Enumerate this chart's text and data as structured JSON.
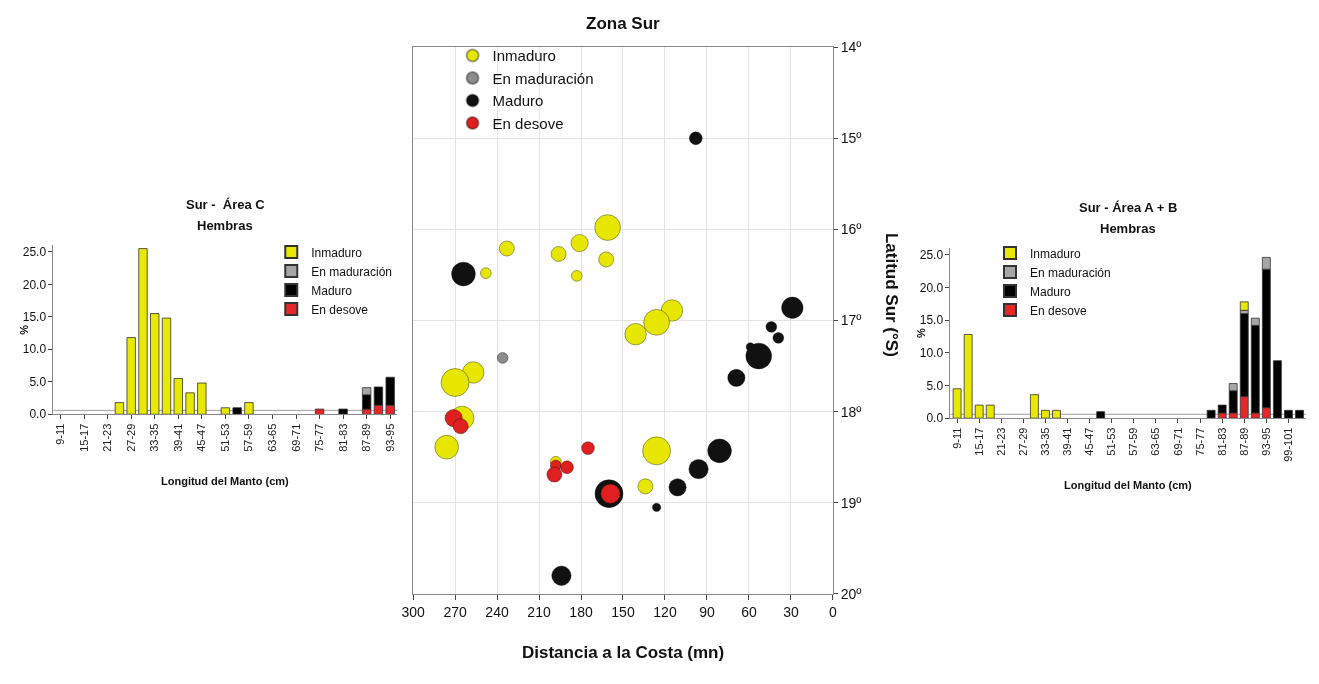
{
  "chart_data": [
    {
      "type": "bar",
      "stacked": true,
      "title": "Sur -  Área C",
      "subtitle": "Hembras",
      "xlabel": "Longitud del Manto (cm)",
      "ylabel": "%",
      "legend": "top right",
      "categories": [
        "9-11",
        null,
        "15-17",
        null,
        "21-23",
        null,
        "27-29",
        null,
        "33-35",
        null,
        "39-41",
        null,
        "45-47",
        null,
        "51-53",
        null,
        "57-59",
        null,
        "63-65",
        null,
        "69-71",
        null,
        "75-77",
        null,
        "81-83",
        null,
        "87-89",
        null,
        "93-95"
      ],
      "ylim": [
        0,
        26
      ],
      "yticks": [
        {
          "value": 0,
          "label": "0.0"
        },
        {
          "value": 5,
          "label": "5.0"
        },
        {
          "value": 10,
          "label": "10.0"
        },
        {
          "value": 15,
          "label": "15.0"
        },
        {
          "value": 20,
          "label": "20.0"
        },
        {
          "value": 25,
          "label": "25.0"
        }
      ],
      "ref_lines": [
        {
          "axis": "y",
          "value": 0.6,
          "color": "#a0a0a0"
        }
      ],
      "series": [
        {
          "name": "En desove",
          "color": "#e8262a",
          "values": [
            null,
            null,
            null,
            null,
            null,
            null,
            null,
            null,
            null,
            null,
            null,
            null,
            null,
            null,
            null,
            null,
            null,
            null,
            null,
            null,
            null,
            null,
            0.8,
            null,
            null,
            null,
            0.8,
            1.4,
            1.4
          ]
        },
        {
          "name": "Maduro",
          "color": "#000000",
          "values": [
            null,
            null,
            null,
            null,
            null,
            null,
            null,
            null,
            null,
            null,
            null,
            null,
            null,
            null,
            null,
            1.0,
            null,
            null,
            null,
            null,
            null,
            null,
            null,
            null,
            0.8,
            null,
            2.2,
            2.8,
            4.3
          ]
        },
        {
          "name": "En maduración",
          "color": "#a6a6a6",
          "values": [
            null,
            null,
            null,
            null,
            null,
            null,
            null,
            null,
            null,
            null,
            null,
            null,
            null,
            null,
            null,
            null,
            null,
            null,
            null,
            null,
            null,
            null,
            null,
            null,
            null,
            null,
            1.1,
            null,
            null
          ]
        },
        {
          "name": "Inmaduro",
          "color": "#e8e800",
          "values": [
            null,
            null,
            null,
            null,
            null,
            1.8,
            11.8,
            25.5,
            15.5,
            14.8,
            5.5,
            3.3,
            4.8,
            null,
            1.0,
            null,
            1.8,
            null,
            null,
            null,
            null,
            null,
            null,
            null,
            null,
            null,
            null,
            null,
            null
          ]
        }
      ]
    },
    {
      "type": "bubble",
      "title": "Zona Sur",
      "xlabel": "Distancia a la Costa (mn)",
      "ylabel": "Latitud Sur (°S)",
      "legend": "top left",
      "grid": true,
      "xlim": [
        300,
        0
      ],
      "xticks": [
        300,
        270,
        240,
        210,
        180,
        150,
        120,
        90,
        60,
        30,
        0
      ],
      "ylim": [
        20,
        14
      ],
      "yticks": [
        {
          "value": 14,
          "label": "14º"
        },
        {
          "value": 15,
          "label": "15º"
        },
        {
          "value": 16,
          "label": "16º"
        },
        {
          "value": 17,
          "label": "17º"
        },
        {
          "value": 18,
          "label": "18º"
        },
        {
          "value": 19,
          "label": "19º"
        },
        {
          "value": 20,
          "label": "20º"
        }
      ],
      "series": [
        {
          "name": "Inmaduro",
          "color": "#e6e600",
          "x": [
            161,
            181,
            196,
            233,
            162,
            183,
            248,
            115,
            126,
            141,
            257,
            270,
            265,
            276,
            126,
            134,
            198
          ],
          "values": [
            15.98,
            16.15,
            16.27,
            16.21,
            16.33,
            16.51,
            16.48,
            16.89,
            17.02,
            17.15,
            17.57,
            17.68,
            18.07,
            18.39,
            18.43,
            18.82,
            18.55
          ],
          "sizes": [
            0.85,
            0.38,
            0.29,
            0.29,
            0.29,
            0.15,
            0.15,
            0.59,
            0.85,
            0.59,
            0.59,
            1,
            0.72,
            0.72,
            1,
            0.29,
            0.15
          ]
        },
        {
          "name": "En maduración",
          "color": "#8c8c8c",
          "x": [
            236
          ],
          "values": [
            17.41
          ],
          "sizes": [
            0.15
          ]
        },
        {
          "name": "Maduro",
          "color": "#111111",
          "x": [
            98,
            264,
            29,
            44,
            39,
            59,
            53,
            69,
            81,
            96,
            111,
            126,
            194,
            160
          ],
          "values": [
            15.0,
            16.49,
            16.86,
            17.07,
            17.19,
            17.29,
            17.39,
            17.63,
            18.43,
            18.63,
            18.83,
            19.05,
            19.8,
            18.9
          ],
          "sizes": [
            0.21,
            0.72,
            0.59,
            0.15,
            0.15,
            0.09,
            0.85,
            0.38,
            0.72,
            0.48,
            0.38,
            0.09,
            0.48,
            1
          ]
        },
        {
          "name": "En desove",
          "color": "#e02020",
          "x": [
            271,
            266,
            175,
            198,
            190,
            199,
            159
          ],
          "values": [
            18.07,
            18.16,
            18.4,
            18.59,
            18.61,
            18.69,
            18.9
          ],
          "sizes": [
            0.38,
            0.29,
            0.21,
            0.15,
            0.21,
            0.29,
            0.48
          ]
        }
      ]
    },
    {
      "type": "bar",
      "stacked": true,
      "title": "Sur - Área A + B",
      "subtitle": "Hembras",
      "xlabel": "Longitud del Manto (cm)",
      "ylabel": "%",
      "legend": "top left",
      "categories": [
        "9-11",
        null,
        "15-17",
        null,
        "21-23",
        null,
        "27-29",
        null,
        "33-35",
        null,
        "39-41",
        null,
        "45-47",
        null,
        "51-53",
        null,
        "57-59",
        null,
        "63-65",
        null,
        "69-71",
        null,
        "75-77",
        null,
        "81-83",
        null,
        "87-89",
        null,
        "93-95",
        null,
        "99-101",
        null
      ],
      "ylim": [
        0,
        26
      ],
      "yticks": [
        {
          "value": 0,
          "label": "0.0"
        },
        {
          "value": 5,
          "label": "5.0"
        },
        {
          "value": 10,
          "label": "10.0"
        },
        {
          "value": 15,
          "label": "15.0"
        },
        {
          "value": 20,
          "label": "20.0"
        },
        {
          "value": 25,
          "label": "25.0"
        }
      ],
      "ref_lines": [
        {
          "axis": "y",
          "value": 0.6,
          "color": "#a0a0a0"
        }
      ],
      "series": [
        {
          "name": "En desove",
          "color": "#e8262a",
          "values": [
            null,
            null,
            null,
            null,
            null,
            null,
            null,
            null,
            null,
            null,
            null,
            null,
            null,
            null,
            null,
            null,
            null,
            null,
            null,
            null,
            null,
            null,
            null,
            null,
            0.8,
            0.8,
            3.3,
            0.8,
            1.6,
            null,
            null,
            null
          ]
        },
        {
          "name": "Maduro",
          "color": "#000000",
          "values": [
            null,
            null,
            null,
            null,
            null,
            null,
            null,
            null,
            null,
            null,
            null,
            null,
            null,
            1.0,
            null,
            null,
            null,
            null,
            null,
            null,
            null,
            null,
            null,
            1.2,
            1.2,
            3.4,
            12.7,
            13.4,
            21.2,
            8.8,
            1.2,
            1.2
          ]
        },
        {
          "name": "En maduración",
          "color": "#a6a6a6",
          "values": [
            null,
            null,
            null,
            null,
            null,
            null,
            null,
            null,
            null,
            null,
            null,
            null,
            null,
            null,
            null,
            null,
            null,
            null,
            null,
            null,
            null,
            null,
            null,
            null,
            null,
            1.1,
            0.5,
            1.1,
            1.8,
            null,
            null,
            null
          ]
        },
        {
          "name": "Inmaduro",
          "color": "#e8e800",
          "values": [
            4.5,
            12.8,
            2.0,
            2.0,
            null,
            null,
            null,
            3.6,
            1.2,
            1.2,
            null,
            null,
            null,
            null,
            null,
            null,
            null,
            null,
            null,
            null,
            null,
            null,
            null,
            null,
            null,
            null,
            1.3,
            null,
            null,
            null,
            null,
            null
          ]
        }
      ]
    }
  ]
}
